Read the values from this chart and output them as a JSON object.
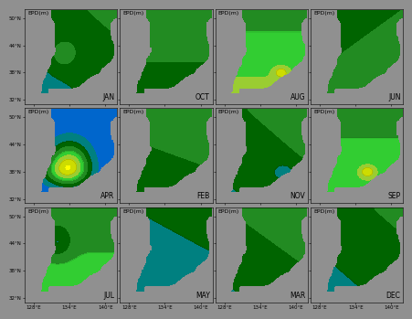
{
  "months": [
    "JAN",
    "FEB",
    "MAR",
    "APR",
    "MAY",
    "JUN",
    "JUL",
    "AUG",
    "SEP",
    "OCT",
    "NOV",
    "DEC"
  ],
  "month_order": [
    "JAN",
    "APR",
    "JUL",
    "OCT",
    "FEB",
    "MAY",
    "AUG",
    "NOV",
    "MAR",
    "JUN",
    "SEP",
    "DEC"
  ],
  "lon_min": 126.5,
  "lon_max": 142.0,
  "lat_min": 31.0,
  "lat_max": 52.0,
  "lon_ticks": [
    128,
    134,
    140
  ],
  "lat_ticks": [
    32,
    38,
    44,
    50
  ],
  "colormap_levels": [
    0,
    10,
    20,
    30,
    40,
    50,
    60,
    70,
    80,
    90,
    100,
    110,
    120
  ],
  "colors_epd": [
    "#00008b",
    "#0000ff",
    "#0066cc",
    "#008080",
    "#006400",
    "#228b22",
    "#32cd32",
    "#9acd32",
    "#cddc00",
    "#ffff00",
    "#ffd700",
    "#ffa500",
    "#ff4500"
  ],
  "fig_width": 4.48,
  "fig_height": 3.45,
  "dpi": 100,
  "tick_fontsize": 4.0,
  "label_fontsize": 4.5,
  "month_fontsize": 5.5,
  "background_color": "#909090",
  "land_color": "#c8c8c8"
}
